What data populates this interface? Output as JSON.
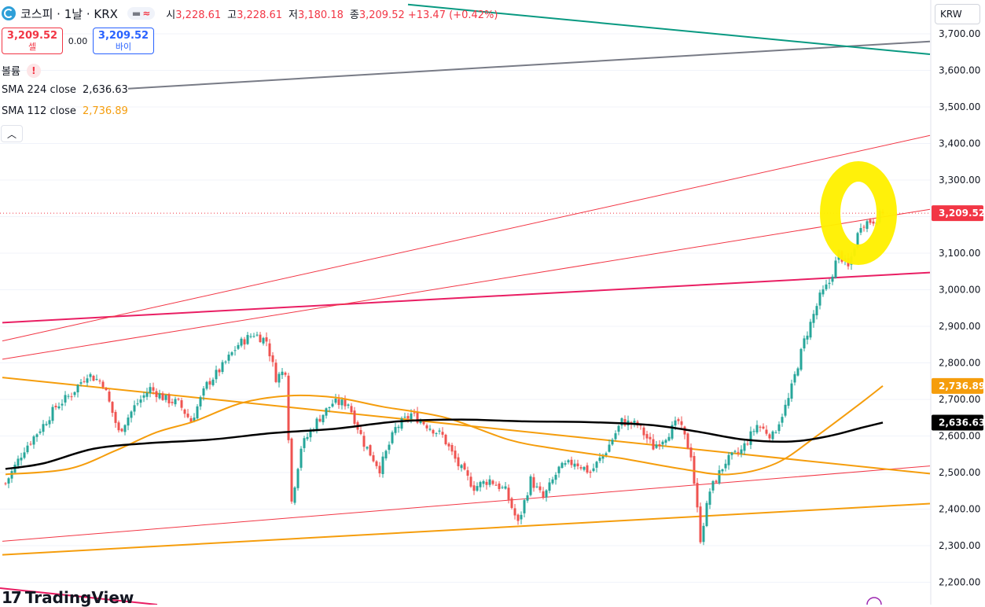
{
  "header": {
    "symbol_title": "코스피 · 1날 · KRX",
    "pill_icon_a": "minus-icon",
    "pill_icon_b": "approx-icon",
    "ohlc": [
      {
        "key": "시",
        "value": "3,228.61"
      },
      {
        "key": "고",
        "value": "3,228.61"
      },
      {
        "key": "저",
        "value": "3,180.18"
      },
      {
        "key": "종",
        "value": "3,209.52 +13.47 (+0.42%)"
      }
    ]
  },
  "trade": {
    "sell_price": "3,209.52",
    "sell_label": "셀",
    "spread": "0.00",
    "buy_price": "3,209.52",
    "buy_label": "바이"
  },
  "indicators": {
    "volume_label": "볼륨",
    "volume_warning": "!",
    "sma224_label": "SMA 224 close",
    "sma224_value": "2,636.63",
    "sma112_label": "SMA 112 close",
    "sma112_value": "2,736.89",
    "collapse_icon": "chevron-up-icon"
  },
  "currency": "KRW",
  "logo_text": "TradingView",
  "colors": {
    "up": "#26a69a",
    "down": "#ef5350",
    "sma224": "#000000",
    "sma112": "#f59d0c",
    "last_price_bg": "#f23645",
    "highlight": "#fff000"
  },
  "chart_data": {
    "type": "candlestick",
    "ylim": [
      2190,
      3760
    ],
    "y_ticks": [
      "3,700.00",
      "3,600.00",
      "3,500.00",
      "3,400.00",
      "3,300.00",
      "3,200.00",
      "3,100.00",
      "3,000.00",
      "2,900.00",
      "2,800.00",
      "2,700.00",
      "2,600.00",
      "2,500.00",
      "2,400.00",
      "2,300.00",
      "2,200.00"
    ],
    "y_tick_values": [
      3700,
      3600,
      3500,
      3400,
      3300,
      3200,
      3100,
      3000,
      2900,
      2800,
      2700,
      2600,
      2500,
      2400,
      2300,
      2200
    ],
    "price_labels": [
      {
        "text": "3,209.52",
        "value": 3209.52,
        "bg": "#f23645",
        "fg": "#ffffff"
      },
      {
        "text": "2,736.89",
        "value": 2736.89,
        "bg": "#f59d0c",
        "fg": "#ffffff"
      },
      {
        "text": "2,636.63",
        "value": 2636.63,
        "bg": "#000000",
        "fg": "#ffffff"
      }
    ],
    "last_close": 3209.52,
    "anchors": [
      [
        0,
        2470
      ],
      [
        6,
        2565
      ],
      [
        12,
        2630
      ],
      [
        16,
        2680
      ],
      [
        21,
        2715
      ],
      [
        26,
        2770
      ],
      [
        31,
        2745
      ],
      [
        36,
        2610
      ],
      [
        41,
        2680
      ],
      [
        46,
        2730
      ],
      [
        51,
        2700
      ],
      [
        55,
        2690
      ],
      [
        59,
        2640
      ],
      [
        64,
        2740
      ],
      [
        69,
        2790
      ],
      [
        74,
        2850
      ],
      [
        79,
        2880
      ],
      [
        83,
        2860
      ],
      [
        86,
        2760
      ],
      [
        89,
        2780
      ],
      [
        91,
        2420
      ],
      [
        94,
        2570
      ],
      [
        99,
        2640
      ],
      [
        104,
        2690
      ],
      [
        109,
        2690
      ],
      [
        114,
        2580
      ],
      [
        119,
        2510
      ],
      [
        124,
        2620
      ],
      [
        129,
        2660
      ],
      [
        134,
        2630
      ],
      [
        139,
        2600
      ],
      [
        144,
        2520
      ],
      [
        149,
        2460
      ],
      [
        154,
        2480
      ],
      [
        159,
        2450
      ],
      [
        163,
        2360
      ],
      [
        167,
        2480
      ],
      [
        171,
        2430
      ],
      [
        176,
        2510
      ],
      [
        181,
        2530
      ],
      [
        186,
        2500
      ],
      [
        191,
        2560
      ],
      [
        196,
        2640
      ],
      [
        201,
        2630
      ],
      [
        206,
        2570
      ],
      [
        210,
        2600
      ],
      [
        214,
        2640
      ],
      [
        218,
        2550
      ],
      [
        221,
        2320
      ],
      [
        224,
        2450
      ],
      [
        229,
        2530
      ],
      [
        234,
        2560
      ],
      [
        239,
        2630
      ],
      [
        244,
        2600
      ],
      [
        249,
        2700
      ],
      [
        254,
        2860
      ],
      [
        259,
        2980
      ],
      [
        262,
        3020
      ],
      [
        265,
        3100
      ],
      [
        268,
        3060
      ],
      [
        272,
        3180
      ],
      [
        276,
        3190
      ],
      [
        279,
        3210
      ]
    ],
    "sma224": [
      [
        0,
        2510
      ],
      [
        12,
        2525
      ],
      [
        28,
        2565
      ],
      [
        45,
        2580
      ],
      [
        65,
        2590
      ],
      [
        85,
        2608
      ],
      [
        105,
        2620
      ],
      [
        125,
        2640
      ],
      [
        145,
        2645
      ],
      [
        165,
        2640
      ],
      [
        185,
        2638
      ],
      [
        205,
        2630
      ],
      [
        220,
        2612
      ],
      [
        235,
        2590
      ],
      [
        250,
        2585
      ],
      [
        262,
        2600
      ],
      [
        272,
        2622
      ],
      [
        279,
        2636.63
      ]
    ],
    "sma112": [
      [
        0,
        2495
      ],
      [
        20,
        2510
      ],
      [
        35,
        2560
      ],
      [
        48,
        2610
      ],
      [
        60,
        2640
      ],
      [
        75,
        2690
      ],
      [
        90,
        2710
      ],
      [
        105,
        2705
      ],
      [
        120,
        2680
      ],
      [
        140,
        2650
      ],
      [
        160,
        2590
      ],
      [
        175,
        2565
      ],
      [
        195,
        2540
      ],
      [
        215,
        2510
      ],
      [
        230,
        2495
      ],
      [
        245,
        2525
      ],
      [
        258,
        2600
      ],
      [
        272,
        2690
      ],
      [
        279,
        2736.89
      ]
    ],
    "trendlines": [
      {
        "color": "#e91e63",
        "width": 2,
        "from": [
          -1,
          2910
        ],
        "to": [
          294,
          3047
        ]
      },
      {
        "color": "#f23645",
        "width": 1,
        "from": [
          -1,
          2810
        ],
        "to": [
          294,
          3220
        ]
      },
      {
        "color": "#f23645",
        "width": 1,
        "from": [
          -1,
          2860
        ],
        "to": [
          294,
          3422
        ]
      },
      {
        "color": "#f23645",
        "width": 1,
        "from": [
          -1,
          2312
        ],
        "to": [
          294,
          2518
        ]
      },
      {
        "color": "#f59d0c",
        "width": 2,
        "from": [
          -1,
          2760
        ],
        "to": [
          294,
          2497
        ]
      },
      {
        "color": "#f59d0c",
        "width": 2,
        "from": [
          -1,
          2275
        ],
        "to": [
          294,
          2415
        ]
      },
      {
        "color": "#787b86",
        "width": 2,
        "from": [
          39,
          3550
        ],
        "to": [
          294,
          3679
        ]
      },
      {
        "color": "#089981",
        "width": 2,
        "from": [
          128,
          3780
        ],
        "to": [
          294,
          3644
        ]
      }
    ]
  }
}
